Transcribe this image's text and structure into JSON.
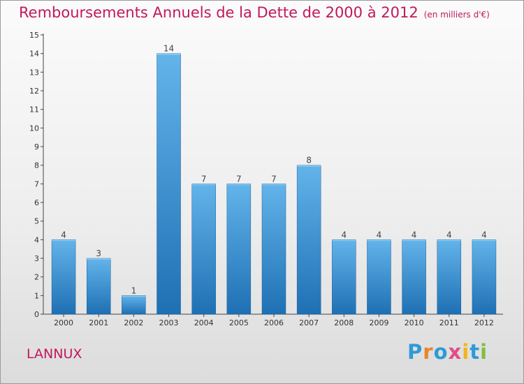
{
  "title": {
    "main": "Remboursements Annuels de la Dette de 2000 à 2012",
    "unit": "(en milliers d'€)"
  },
  "commune": "LANNUX",
  "logo": {
    "text": "Proxiti",
    "colors": [
      "#2d9bd6",
      "#e8862a",
      "#2d9bd6",
      "#e24d8b",
      "#f2b51b",
      "#2d9bd6",
      "#7fbf3f"
    ]
  },
  "colors": {
    "bar_top": "#63b4ea",
    "bar_bottom": "#1e70b4",
    "title": "#c2185b"
  },
  "chart_data": {
    "type": "bar",
    "categories": [
      "2000",
      "2001",
      "2002",
      "2003",
      "2004",
      "2005",
      "2006",
      "2007",
      "2008",
      "2009",
      "2010",
      "2011",
      "2012"
    ],
    "values": [
      4,
      3,
      1,
      14,
      7,
      7,
      7,
      8,
      4,
      4,
      4,
      4,
      4
    ],
    "data_labels": [
      "4",
      "3",
      "1",
      "14",
      "7",
      "7",
      "7",
      "8",
      "4",
      "4",
      "4",
      "4",
      "4"
    ],
    "ylim": [
      0,
      15
    ],
    "yticks": [
      "0",
      "1",
      "2",
      "3",
      "4",
      "5",
      "6",
      "7",
      "8",
      "9",
      "10",
      "11",
      "12",
      "13",
      "14",
      "15"
    ],
    "grid": false
  }
}
